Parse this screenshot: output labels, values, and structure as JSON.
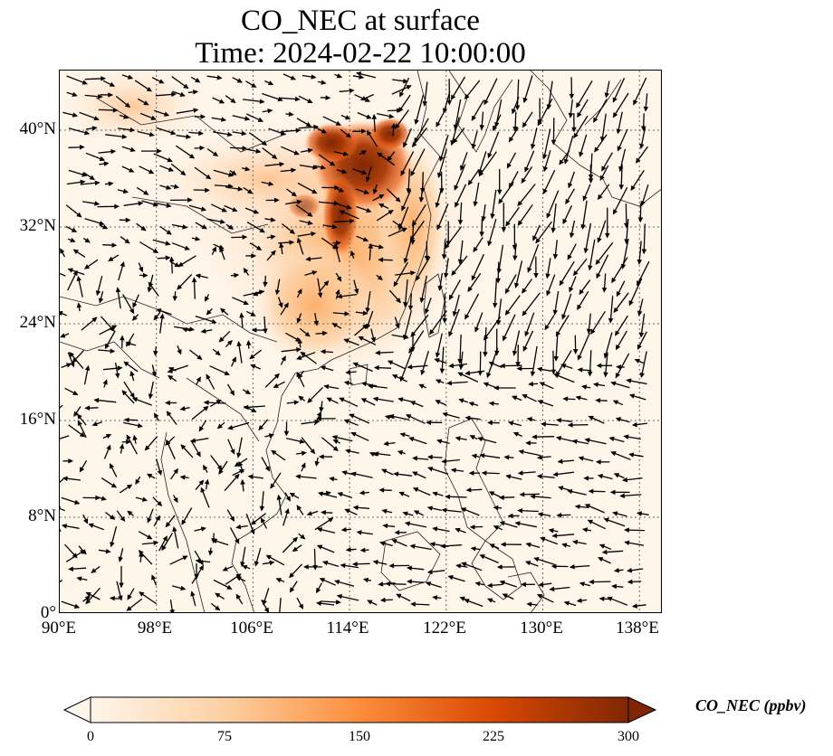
{
  "title": {
    "line1": "CO_NEC at surface",
    "line2": "Time: 2024-02-22 10:00:00"
  },
  "map": {
    "region": "East / Southeast Asia",
    "lon_range": [
      90,
      140
    ],
    "lat_range": [
      0,
      40
    ],
    "latitude_ticks": [
      "0°",
      "8°N",
      "16°N",
      "24°N",
      "32°N",
      "40°N"
    ],
    "longitude_ticks": [
      "90°E",
      "98°E",
      "106°E",
      "114°E",
      "122°E",
      "130°E",
      "138°E"
    ],
    "gridlines": "dotted",
    "layers": [
      "CO concentration shading",
      "wind vectors",
      "coastlines and borders"
    ],
    "high_concentration_area": "North China Plain"
  },
  "colorbar": {
    "label": "CO_NEC (ppbv)",
    "ticks": [
      "0",
      "75",
      "150",
      "225",
      "300"
    ],
    "min": 0,
    "max": 300,
    "extend": "both",
    "colormap": [
      "#fff5eb",
      "#fdd0a2",
      "#fd8d3c",
      "#d94801",
      "#7f2704"
    ]
  }
}
